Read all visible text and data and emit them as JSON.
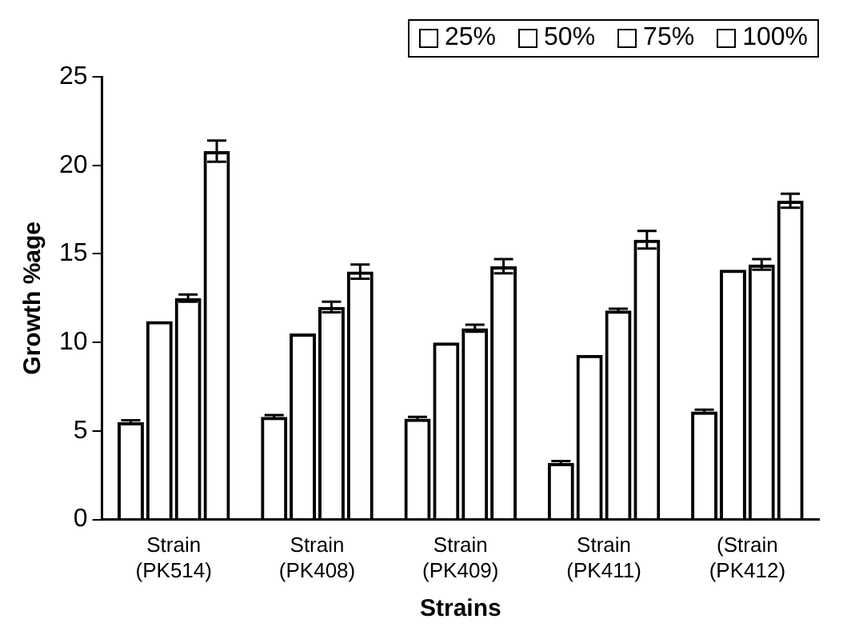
{
  "chart_data": {
    "type": "bar",
    "xlabel": "Strains",
    "ylabel": "Growth %age",
    "categories": [
      "Strain (PK514)",
      "Strain (PK408)",
      "Strain (PK409)",
      "Strain (PK411)",
      "(Strain (PK412)"
    ],
    "series": [
      {
        "name": "25%",
        "color": "#000000",
        "values": [
          5.5,
          5.8,
          5.7,
          3.2,
          6.1
        ],
        "errors": [
          0.1,
          0.1,
          0.1,
          0.1,
          0.1
        ]
      },
      {
        "name": "50%",
        "color": "#000000",
        "values": [
          11.2,
          10.5,
          10.0,
          9.3,
          14.1
        ]
      },
      {
        "name": "75%",
        "color": "#000000",
        "values": [
          12.5,
          12.0,
          10.8,
          11.8,
          14.4
        ],
        "errors": [
          0.2,
          0.3,
          0.2,
          0.1,
          0.3
        ]
      },
      {
        "name": "100%",
        "color": "#000000",
        "values": [
          20.8,
          14.0,
          14.3,
          15.8,
          18.0
        ],
        "errors": [
          0.6,
          0.4,
          0.4,
          0.5,
          0.4
        ]
      }
    ],
    "ylim": [
      0,
      25
    ],
    "yticks": [
      0,
      5,
      10,
      15,
      20,
      25
    ],
    "grid": false,
    "legend": "top right"
  }
}
